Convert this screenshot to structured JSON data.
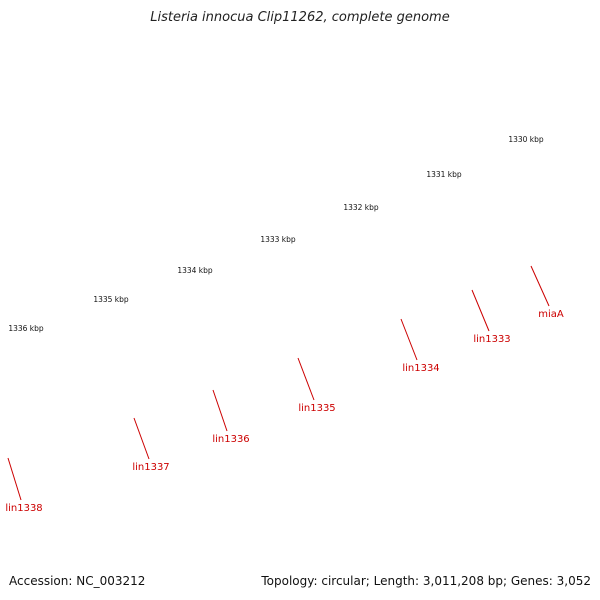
{
  "title": "Listeria innocua Clip11262, complete genome",
  "footer": {
    "accession": "Accession: NC_003212",
    "summary": "Topology: circular; Length: 3,011,208 bp; Genes: 3,052"
  },
  "kbp_labels": [
    "1330 kbp",
    "1331 kbp",
    "1332 kbp",
    "1333 kbp",
    "1334 kbp",
    "1335 kbp",
    "1336 kbp"
  ],
  "gene_labels": [
    "miaA",
    "lin1333",
    "lin1334",
    "lin1335",
    "lin1336",
    "lin1337",
    "lin1338"
  ],
  "colors": {
    "backbone": "#777777",
    "gene_arrow": "#ee0000",
    "tick": "#1a7a1a",
    "label": "#cc0000",
    "feature_purple": "#4a3c8c",
    "feature_blue": "#4682b4",
    "feature_orange": "#ff8c00",
    "feature_grey": "#bdbdbd",
    "feature_pink": "#ee7777",
    "feature_cyan": "#00e5ee"
  }
}
